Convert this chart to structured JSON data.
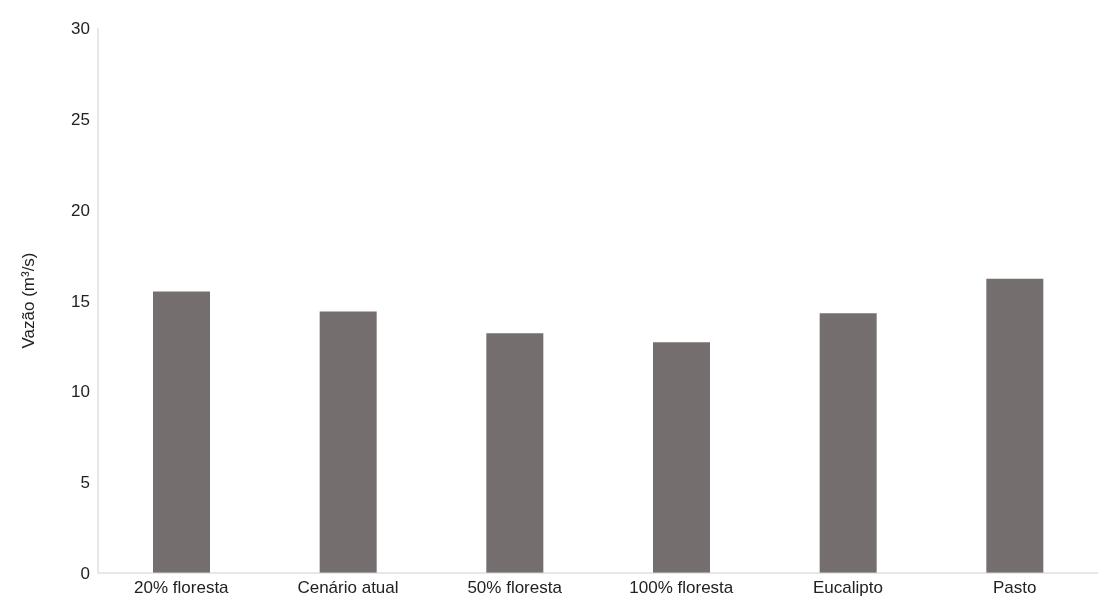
{
  "chart_data": {
    "type": "bar",
    "ylabel": "Vazão (m³/s)",
    "categories": [
      "20% floresta",
      "Cenário atual",
      "50% floresta",
      "100%  floresta",
      "Eucalipto",
      "Pasto"
    ],
    "values": [
      15.5,
      14.4,
      13.2,
      12.7,
      14.3,
      16.2
    ],
    "color": "#746f6e",
    "ylim": [
      0,
      30
    ],
    "yticks": [
      0,
      5,
      10,
      15,
      20,
      25,
      30
    ],
    "grid": false,
    "legend": false
  }
}
